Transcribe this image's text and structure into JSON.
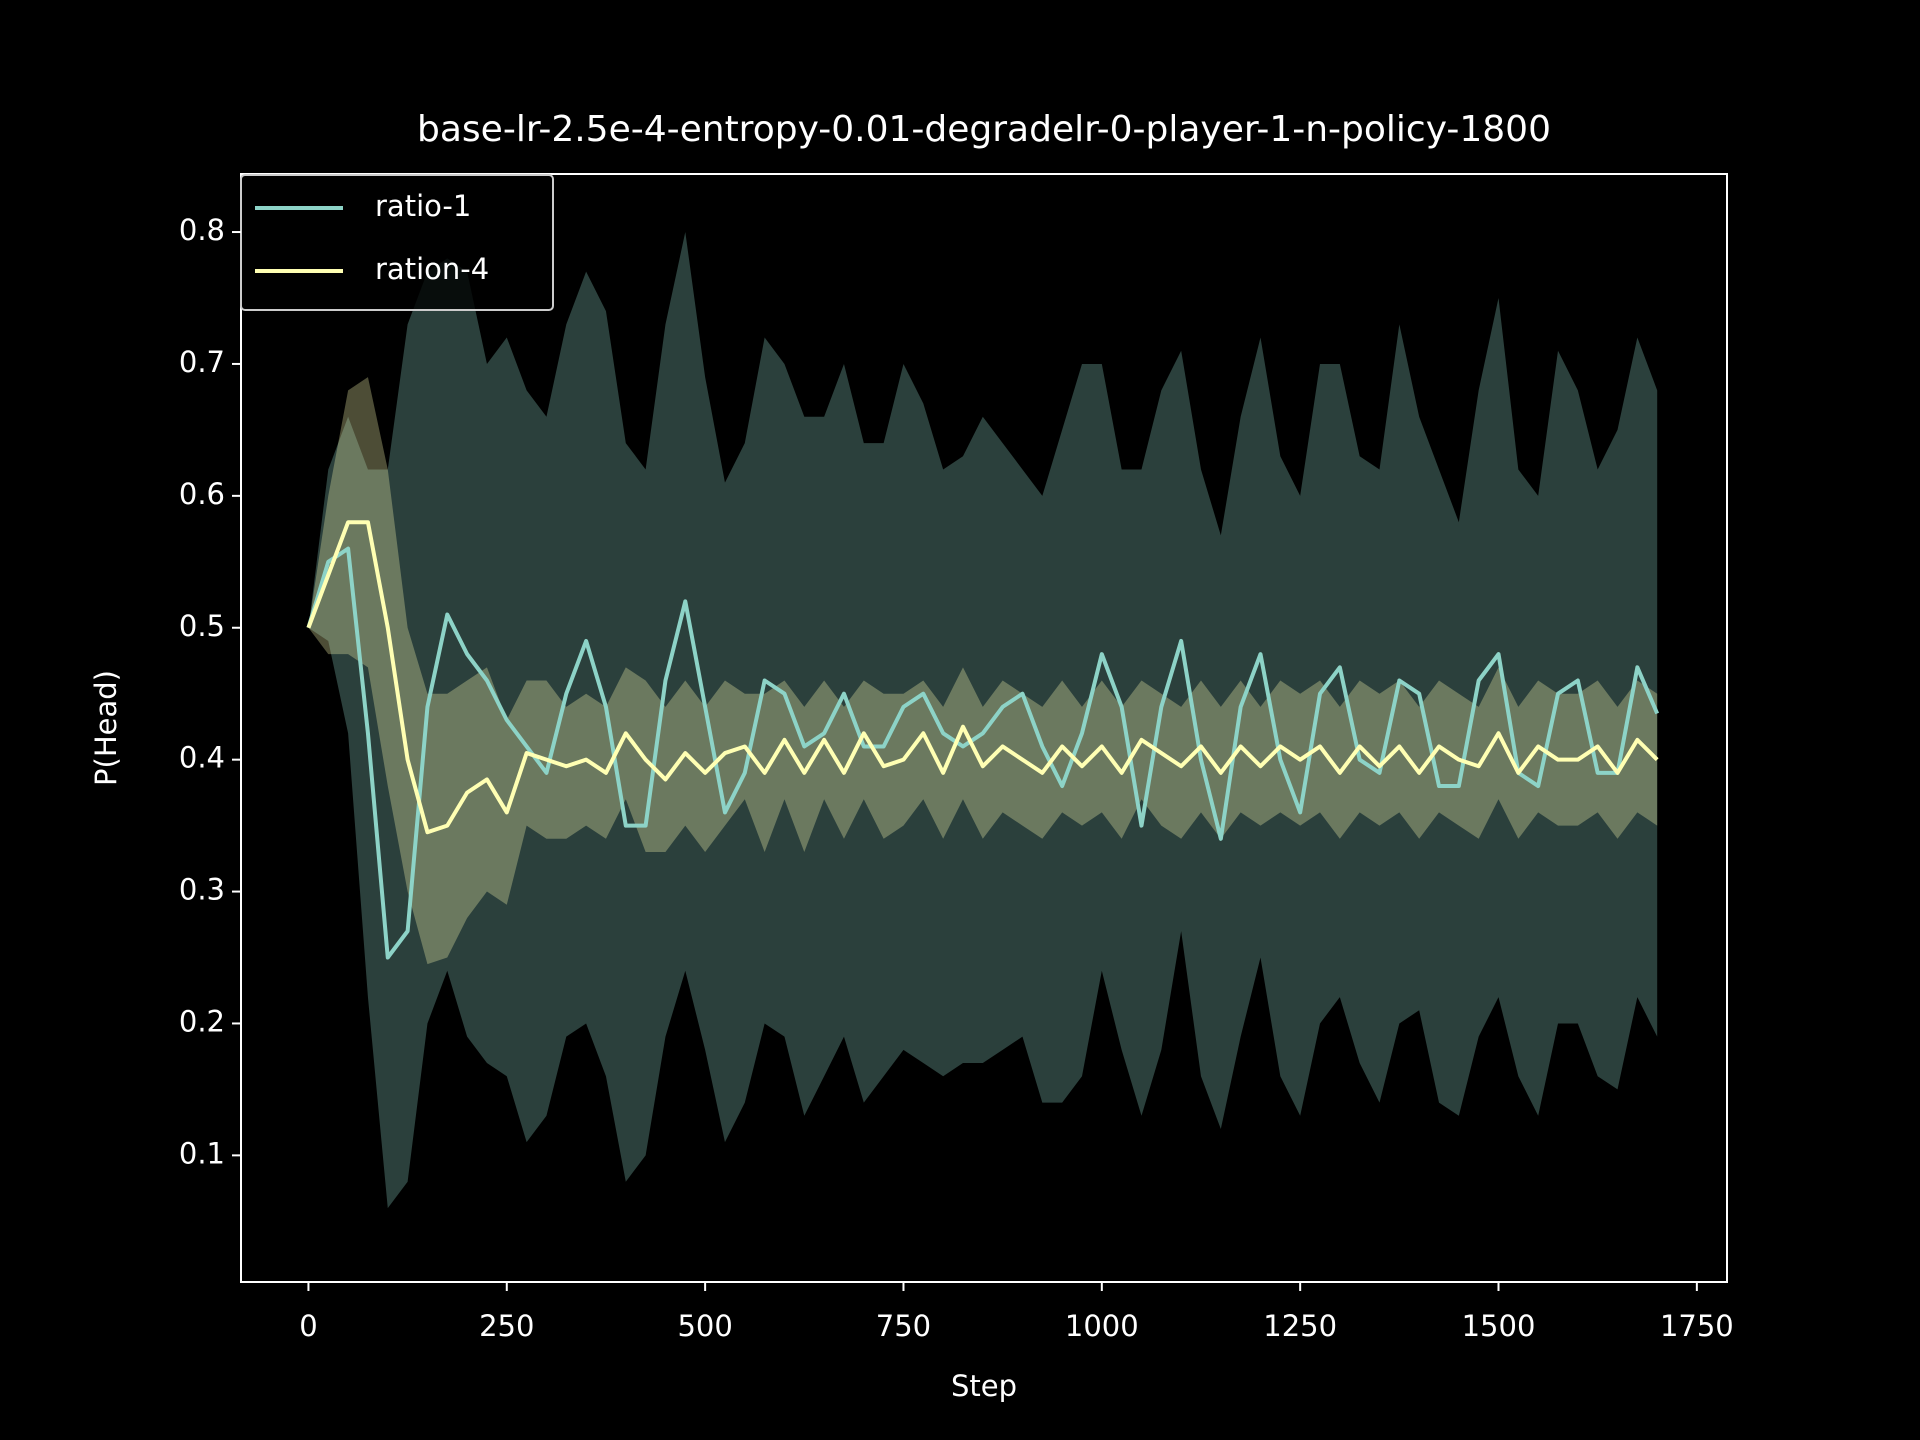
{
  "chart_data": {
    "type": "line",
    "title": "base-lr-2.5e-4-entropy-0.01-degradelr-0-player-1-n-policy-1800",
    "x_label": "Step",
    "y_label": "P(Head)",
    "xlim": [
      -85,
      1788
    ],
    "ylim": [
      0.004,
      0.844
    ],
    "xticks": [
      0,
      250,
      500,
      750,
      1000,
      1250,
      1500,
      1750
    ],
    "yticks": [
      0.1,
      0.2,
      0.3,
      0.4,
      0.5,
      0.6,
      0.7,
      0.8
    ],
    "legend": "upper left",
    "band_opacity": 0.3,
    "x": [
      0,
      25,
      50,
      75,
      100,
      125,
      150,
      175,
      200,
      225,
      250,
      275,
      300,
      325,
      350,
      375,
      400,
      425,
      450,
      475,
      500,
      525,
      550,
      575,
      600,
      625,
      650,
      675,
      700,
      725,
      750,
      775,
      800,
      825,
      850,
      875,
      900,
      925,
      950,
      975,
      1000,
      1025,
      1050,
      1075,
      1100,
      1125,
      1150,
      1175,
      1200,
      1225,
      1250,
      1275,
      1300,
      1325,
      1350,
      1375,
      1400,
      1425,
      1450,
      1475,
      1500,
      1525,
      1550,
      1575,
      1600,
      1625,
      1650,
      1675,
      1700
    ],
    "series": [
      {
        "name": "ratio-1",
        "color": "#8dd3c7",
        "values": [
          0.5,
          0.55,
          0.56,
          0.42,
          0.25,
          0.27,
          0.44,
          0.51,
          0.48,
          0.46,
          0.43,
          0.41,
          0.39,
          0.45,
          0.49,
          0.44,
          0.35,
          0.35,
          0.46,
          0.52,
          0.44,
          0.36,
          0.39,
          0.46,
          0.45,
          0.41,
          0.42,
          0.45,
          0.41,
          0.41,
          0.44,
          0.45,
          0.42,
          0.41,
          0.42,
          0.44,
          0.45,
          0.41,
          0.38,
          0.42,
          0.48,
          0.44,
          0.35,
          0.44,
          0.49,
          0.4,
          0.34,
          0.44,
          0.48,
          0.4,
          0.36,
          0.45,
          0.47,
          0.4,
          0.39,
          0.46,
          0.45,
          0.38,
          0.38,
          0.46,
          0.48,
          0.39,
          0.38,
          0.45,
          0.46,
          0.39,
          0.39,
          0.47,
          0.435
        ],
        "upper": [
          0.5,
          0.62,
          0.66,
          0.62,
          0.62,
          0.73,
          0.77,
          0.78,
          0.77,
          0.7,
          0.72,
          0.68,
          0.66,
          0.73,
          0.77,
          0.74,
          0.64,
          0.62,
          0.73,
          0.8,
          0.69,
          0.61,
          0.64,
          0.72,
          0.7,
          0.66,
          0.66,
          0.7,
          0.64,
          0.64,
          0.7,
          0.67,
          0.62,
          0.63,
          0.66,
          0.64,
          0.62,
          0.6,
          0.65,
          0.7,
          0.7,
          0.62,
          0.62,
          0.68,
          0.71,
          0.62,
          0.57,
          0.66,
          0.72,
          0.63,
          0.6,
          0.7,
          0.7,
          0.63,
          0.62,
          0.73,
          0.66,
          0.62,
          0.58,
          0.68,
          0.75,
          0.62,
          0.6,
          0.71,
          0.68,
          0.62,
          0.65,
          0.72,
          0.68
        ],
        "lower": [
          0.5,
          0.49,
          0.42,
          0.22,
          0.06,
          0.08,
          0.2,
          0.24,
          0.19,
          0.17,
          0.16,
          0.11,
          0.13,
          0.19,
          0.2,
          0.16,
          0.08,
          0.1,
          0.19,
          0.24,
          0.18,
          0.11,
          0.14,
          0.2,
          0.19,
          0.13,
          0.16,
          0.19,
          0.14,
          0.16,
          0.18,
          0.17,
          0.16,
          0.17,
          0.17,
          0.18,
          0.19,
          0.14,
          0.14,
          0.16,
          0.24,
          0.18,
          0.13,
          0.18,
          0.27,
          0.16,
          0.12,
          0.19,
          0.25,
          0.16,
          0.13,
          0.2,
          0.22,
          0.17,
          0.14,
          0.2,
          0.21,
          0.14,
          0.13,
          0.19,
          0.22,
          0.16,
          0.13,
          0.2,
          0.2,
          0.16,
          0.15,
          0.22,
          0.19
        ]
      },
      {
        "name": "ration-4",
        "color": "#ffffb3",
        "values": [
          0.5,
          0.54,
          0.58,
          0.58,
          0.5,
          0.4,
          0.345,
          0.35,
          0.375,
          0.385,
          0.36,
          0.405,
          0.4,
          0.395,
          0.4,
          0.39,
          0.42,
          0.4,
          0.385,
          0.405,
          0.39,
          0.405,
          0.41,
          0.39,
          0.415,
          0.39,
          0.415,
          0.39,
          0.42,
          0.395,
          0.4,
          0.42,
          0.39,
          0.425,
          0.395,
          0.41,
          0.4,
          0.39,
          0.41,
          0.395,
          0.41,
          0.39,
          0.415,
          0.405,
          0.395,
          0.41,
          0.39,
          0.41,
          0.395,
          0.41,
          0.4,
          0.41,
          0.39,
          0.41,
          0.395,
          0.41,
          0.39,
          0.41,
          0.4,
          0.395,
          0.42,
          0.39,
          0.41,
          0.4,
          0.4,
          0.41,
          0.39,
          0.415,
          0.4
        ],
        "upper": [
          0.5,
          0.6,
          0.68,
          0.69,
          0.62,
          0.5,
          0.45,
          0.45,
          0.46,
          0.47,
          0.43,
          0.46,
          0.46,
          0.44,
          0.45,
          0.44,
          0.47,
          0.46,
          0.44,
          0.46,
          0.44,
          0.46,
          0.45,
          0.45,
          0.46,
          0.44,
          0.46,
          0.44,
          0.46,
          0.45,
          0.45,
          0.46,
          0.44,
          0.47,
          0.44,
          0.46,
          0.45,
          0.44,
          0.46,
          0.44,
          0.46,
          0.44,
          0.46,
          0.45,
          0.44,
          0.46,
          0.44,
          0.46,
          0.44,
          0.46,
          0.45,
          0.46,
          0.44,
          0.46,
          0.45,
          0.46,
          0.44,
          0.46,
          0.45,
          0.44,
          0.47,
          0.44,
          0.46,
          0.45,
          0.45,
          0.46,
          0.44,
          0.46,
          0.45
        ],
        "lower": [
          0.5,
          0.48,
          0.48,
          0.47,
          0.38,
          0.3,
          0.245,
          0.25,
          0.28,
          0.3,
          0.29,
          0.35,
          0.34,
          0.34,
          0.35,
          0.34,
          0.37,
          0.33,
          0.33,
          0.35,
          0.33,
          0.35,
          0.37,
          0.33,
          0.37,
          0.33,
          0.37,
          0.34,
          0.37,
          0.34,
          0.35,
          0.37,
          0.34,
          0.37,
          0.34,
          0.36,
          0.35,
          0.34,
          0.36,
          0.35,
          0.36,
          0.34,
          0.37,
          0.35,
          0.34,
          0.36,
          0.34,
          0.36,
          0.35,
          0.36,
          0.35,
          0.36,
          0.34,
          0.36,
          0.35,
          0.36,
          0.34,
          0.36,
          0.35,
          0.34,
          0.37,
          0.34,
          0.36,
          0.35,
          0.35,
          0.36,
          0.34,
          0.36,
          0.35
        ]
      }
    ]
  }
}
